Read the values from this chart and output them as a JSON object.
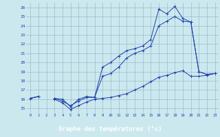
{
  "title": "Graphe des températures (°c)",
  "hours": [
    0,
    1,
    2,
    3,
    4,
    5,
    6,
    7,
    8,
    9,
    10,
    11,
    12,
    13,
    14,
    15,
    16,
    17,
    18,
    19,
    20,
    21,
    22,
    23
  ],
  "line_max": [
    16.1,
    16.3,
    null,
    16.1,
    16.0,
    15.2,
    16.0,
    16.3,
    16.2,
    19.5,
    20.0,
    20.7,
    21.3,
    21.5,
    21.8,
    22.5,
    25.8,
    25.3,
    26.1,
    24.8,
    24.4,
    19.0,
    18.7,
    18.8
  ],
  "line_avg": [
    16.1,
    16.3,
    null,
    16.1,
    15.8,
    15.3,
    15.8,
    16.2,
    16.2,
    18.5,
    18.8,
    19.5,
    20.5,
    21.0,
    21.3,
    21.8,
    24.0,
    24.5,
    25.0,
    24.5,
    24.4,
    19.0,
    18.7,
    18.8
  ],
  "line_min": [
    16.1,
    16.3,
    null,
    16.0,
    15.6,
    14.9,
    15.3,
    15.7,
    16.0,
    16.1,
    16.2,
    16.4,
    16.6,
    17.0,
    17.4,
    17.9,
    18.4,
    18.6,
    18.9,
    19.1,
    18.5,
    18.5,
    18.6,
    18.8
  ],
  "ylim": [
    14.5,
    26.5
  ],
  "yticks": [
    15,
    16,
    17,
    18,
    19,
    20,
    21,
    22,
    23,
    24,
    25,
    26
  ],
  "bg_color": "#cce8ef",
  "line_color": "#1a3faa",
  "grid_color": "#99bbc8",
  "bottom_bar_color": "#2255bb"
}
